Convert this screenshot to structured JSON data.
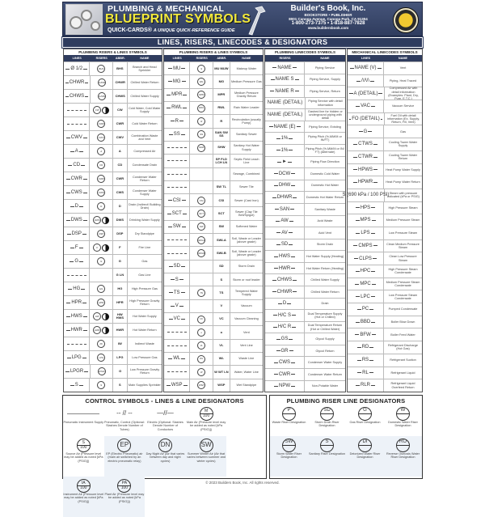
{
  "header": {
    "title_line1": "PLUMBING & MECHANICAL",
    "title_line2": "BLUEPRINT SYMBOLS",
    "brand": "QUICK-CARDS®",
    "tagline": "A UNIQUE QUICK-REFERENCE GUIDE",
    "publisher": "Builder's Book, Inc.",
    "publisher_sub": "BOOKSTORE • PUBLISHER",
    "address": "8001 Canoga Avenue, Canoga Park, CA 91304",
    "phone": "1-800-273-7375 • 1-818-887-7828",
    "website": "www.buildersbook.com",
    "logo_icon": "builders-book-seal",
    "accent": "#f3ea3c",
    "navy": "#2f3c5e"
  },
  "section_title": "LINES, RISERS, LINECODES & DESIGNATORS",
  "columns": [
    {
      "title": "PLUMBING RISERS & LINES SYMBOLS",
      "headers": [
        "LINES",
        "RISERS",
        "ABBR.",
        "NAME"
      ],
      "rows": [
        [
          "Ø 1/2",
          "BHS",
          "BHS",
          "Branch and Head Sprinkler"
        ],
        [
          "CHWR",
          "CHWR",
          "CHWR",
          "Chilled Water Return"
        ],
        [
          "CHWS",
          "CHWS",
          "CHWS",
          "Chilled Water Supply"
        ],
        [
          "",
          "CW",
          "CW",
          "Cold Water, Cold Water Supply",
          "half"
        ],
        [
          "",
          "CWR",
          "CWR",
          "Cold Water Return"
        ],
        [
          "CWV",
          "CWV",
          "CWV",
          "Combination Waste and Vent"
        ],
        [
          "A",
          "A",
          "A",
          "Compressed Air"
        ],
        [
          "CD",
          "CD",
          "CD",
          "Condensate Drain"
        ],
        [
          "CWR",
          "CWR",
          "CWR",
          "Condenser Water Return"
        ],
        [
          "CWS",
          "CWS",
          "CWS",
          "Condenser Water Supply"
        ],
        [
          "D",
          "D",
          "D",
          "Drain (Indirect/ Building Drain)"
        ],
        [
          "DWS",
          "DWS",
          "DWS",
          "Drinking Water Supply",
          "half"
        ],
        [
          "DSP",
          "DSP",
          "DSP",
          "Dry Standpipe"
        ],
        [
          "F",
          "F",
          "F",
          "Fire Line",
          "half"
        ],
        [
          "G",
          "G",
          "G",
          "Gas"
        ],
        [
          "",
          "",
          "G LN",
          "Gas Line"
        ],
        [
          "HG",
          "HG",
          "HG",
          "High Pressure Gas"
        ],
        [
          "HPR",
          "HPR",
          "HPR",
          "High Pressure Gravity Return"
        ],
        [
          "HWS",
          "HW",
          "HW HWS",
          "Hot Water Supply",
          "half"
        ],
        [
          "HWR",
          "HWR",
          "HWR",
          "Hot Water Return",
          "half"
        ],
        [
          "",
          "IW",
          "IW",
          "Indirect Waste"
        ],
        [
          "LPG",
          "LPG",
          "LPG",
          "Low Pressure Gas"
        ],
        [
          "LPGR",
          "LPGR",
          "G",
          "Low Pressure Gravity Return"
        ],
        [
          "S",
          "S",
          "S",
          "Main Supplies Sprinkler"
        ]
      ]
    },
    {
      "title": "PLUMBING RISERS & LINES SYMBOLS",
      "headers": [
        "LINES",
        "RISERS",
        "ABBR.",
        "NAME"
      ],
      "rows": [
        [
          "MU",
          "S",
          "MU MUW",
          "Makeup Water"
        ],
        [
          "MG",
          "MG",
          "MG",
          "Medium Pressure Gas"
        ],
        [
          "MPR",
          "MPR",
          "MPR",
          "Medium Pressure Gravity Return"
        ],
        [
          "RWL",
          "RWL",
          "RWL",
          "Rain Water Leader"
        ],
        [
          "R",
          "R",
          "R",
          "Recirculation (usually Pump)"
        ],
        [
          "SS",
          "SS",
          "SAN SW SS",
          "Sanitary Sewer"
        ],
        [
          "",
          "SHW",
          "SHW",
          "Sanitary Hot Water Supply"
        ],
        [
          "",
          "",
          "SP FLD LCH LN",
          "Septic Field Leach Line"
        ],
        [
          "",
          "",
          "",
          "Sewage, Combined"
        ],
        [
          "",
          "",
          "SW TL",
          "Sewer Tile"
        ],
        [
          "CSI",
          "CSI",
          "CSI",
          "Sewer (Cast Iron)"
        ],
        [
          "SCT",
          "SCT",
          "SCT",
          "Sewer (Clay Tile Bell/Spigot)"
        ],
        [
          "SW",
          "SW",
          "SW",
          "Softened Water"
        ],
        [
          "",
          "SWLA",
          "SWLA",
          "Soil, Waste or Leader (above grade)"
        ],
        [
          "",
          "SWLB",
          "SWLB",
          "Soil, Waste or Leader (above grade)"
        ],
        [
          "SD",
          "",
          "SD",
          "Storm Drain"
        ],
        [
          "S",
          "",
          "S",
          "Storm or roof leader"
        ],
        [
          "TS",
          "TS",
          "TS",
          "Tempered Water Supply"
        ],
        [
          "V",
          "",
          "V",
          "Vacuum"
        ],
        [
          "VC",
          "VC",
          "VC",
          "Vacuum Cleaning"
        ],
        [
          "",
          "o",
          "o",
          "Vent"
        ],
        [
          "",
          "VL",
          "VL",
          "Vent Line"
        ],
        [
          "WL",
          "WL",
          "WL",
          "Waste Line"
        ],
        [
          "",
          "W",
          "W WT LN",
          "Water, Water Line"
        ],
        [
          "WSP",
          "WSP",
          "WSP",
          "Wet Standpipe"
        ]
      ]
    },
    {
      "title": "PLUMBING LINECODES SYMBOLS",
      "headers": [
        "RISERS",
        "NAME"
      ],
      "rows": [
        [
          "NAME",
          "Piping Service"
        ],
        [
          "NAME S",
          "Piping Service, Supply"
        ],
        [
          "NAME R",
          "Piping Service, Return"
        ],
        [
          "NAME (DETAIL)",
          "Piping Service with detail information"
        ],
        [
          "NAME (DETAIL)",
          "Dashed line for hidden or underground piping with detail"
        ],
        [
          "NAME (E)",
          "Piping Service, Existing"
        ],
        [
          "1%",
          "Piping Pitch (%,MM/M or IN/FT)"
        ],
        [
          "1%",
          "Piping Pitch (%,MM/M or IN/ FT) (Alternate)"
        ],
        [
          "►",
          "Piping Flow Direction"
        ],
        [
          "DCW",
          "Domestic Cold Water"
        ],
        [
          "DHW",
          "Domestic Hot Water"
        ],
        [
          "DHWR",
          "Domestic Hot Water Return"
        ],
        [
          "SAN",
          "Sanitary Waste"
        ],
        [
          "AW",
          "Acid Waste"
        ],
        [
          "AV",
          "Acid Vent"
        ],
        [
          "SD",
          "Storm Drain"
        ],
        [
          "HWS",
          "Hot Water Supply (Heating)"
        ],
        [
          "HWR",
          "Hot Water Return (Heating)"
        ],
        [
          "CHWS",
          "Chilled Water Supply"
        ],
        [
          "CHWR",
          "Chilled Water Return"
        ],
        [
          "D",
          "Drain"
        ],
        [
          "H/C S",
          "Dual Temperature Supply (Hot or Chilled)"
        ],
        [
          "H/C R",
          "Dual Temperature Return (Hot or Chilled Water)"
        ],
        [
          "GS",
          "Glycol Supply"
        ],
        [
          "GR",
          "Glycol Return"
        ],
        [
          "CWS",
          "Condenser Water Supply"
        ],
        [
          "CWR",
          "Condenser Water Return"
        ],
        [
          "NPW",
          "Non-Potable Water"
        ]
      ]
    },
    {
      "title": "MECHANICAL LINECODES SYMBOLS",
      "headers": [
        "LINES",
        "NAME"
      ],
      "rows": [
        [
          "NAME (V)",
          "Vent"
        ],
        [
          "/\\/\\/\\",
          "Piping, Heat Traced"
        ],
        [
          "A (DETAIL)",
          "Compressed Air with detail information (Examples: Plant, Dry, Pure, E.T.C.)"
        ],
        [
          "VAC",
          "Vacuum Service"
        ],
        [
          "FO (DETAIL)",
          "Fuel Oil with detail information (Ex. Supply, Return, Fill, Vent)"
        ],
        [
          "G",
          "Gas"
        ],
        [
          "CTWS",
          "Cooling Tower Water Supply"
        ],
        [
          "CTWR",
          "Cooling Tower Water Return"
        ],
        [
          "HPWS",
          "Heat Pump Water Supply"
        ],
        [
          "HPWR",
          "Heat Pump Water Return"
        ],
        [
          "S (690 kPa / 100 PSI)",
          "Steam with pressure indicated (kPa or PSIG)"
        ],
        [
          "HPS",
          "High Pressure Steam"
        ],
        [
          "MPS",
          "Medium Pressure Steam"
        ],
        [
          "LPS",
          "Low Pressure Steam"
        ],
        [
          "CMPS",
          "Clean Medium Pressure Steam"
        ],
        [
          "CLPS",
          "Clean Low Pressure Steam"
        ],
        [
          "HPC",
          "High Pressure Steam Condensate"
        ],
        [
          "MPC",
          "Medium Pressure Steam Condensate"
        ],
        [
          "LPC",
          "Low Pressure Steam Condensate"
        ],
        [
          "PC",
          "Pumped Condensate"
        ],
        [
          "BBD",
          "Boiler Blow Down"
        ],
        [
          "BFW",
          "Boiler Feed Water"
        ],
        [
          "RD",
          "Refrigerant Discharge (Hot Gas)"
        ],
        [
          "RS",
          "Refrigerant Suction"
        ],
        [
          "RL",
          "Refrigerant Liquid"
        ],
        [
          "RLR",
          "Refrigerant Liquid Overfeed Return"
        ]
      ]
    }
  ],
  "control": {
    "title": "CONTROL SYMBOLS - LINES & LINE DESIGNATORS",
    "items": [
      {
        "sym": "",
        "label": "Pneumatic Instrument Supply",
        "kind": "line"
      },
      {
        "sym": "-- // --",
        "label": "Pneumatic, Control (Optional: Slashes Denote Number of Tubes)",
        "kind": "text"
      },
      {
        "sym": "—//—",
        "label": "Electric (Optional: Slashes Denote Number of Conductors",
        "kind": "text"
      },
      {
        "sym": "M",
        "sub": "100",
        "label": "Main Air (Pressure level may be added as noted [kPa (PSIG)])",
        "kind": "split"
      },
      {
        "sym": "S",
        "sub": "100",
        "label": "Source Air (Pressure level may be added as noted [kPa (PSIG)])",
        "kind": "split"
      },
      {
        "sym": "EP",
        "label": "EP (Electric Pneumatic) air (main air switched by an electric pneumatic relay)",
        "kind": "big"
      },
      {
        "sym": "DN",
        "label": "Day Night Air (Air that varies between day and night cycles)",
        "kind": "big"
      },
      {
        "sym": "SW",
        "label": "Summer Winter Air (Air that varies between summer and winter cycles)",
        "kind": "big"
      },
      {
        "sym": "IA",
        "sub": "100",
        "label": "Instrument Air (Pressure level may be added as noted [kPa (PSIG)])",
        "kind": "split"
      },
      {
        "sym": "PA",
        "sub": "100",
        "label": "Plant Air (Pressure level may be added as noted [kPa (PSIG)])",
        "kind": "split"
      }
    ]
  },
  "riser": {
    "title": "PLUMBING RISER LINE DESIGNATORS",
    "items": [
      {
        "sym": "P",
        "label": "Waste Riser Designation"
      },
      {
        "sym": "SD",
        "label": "Storm Drain Riser Designation"
      },
      {
        "sym": "G",
        "label": "Gas Riser Designation"
      },
      {
        "sym": "W",
        "label": "Domestic Water Riser Designation"
      },
      {
        "sym": "SW",
        "label": "Storm Water Riser Designation"
      },
      {
        "sym": "S",
        "label": "Sanitary Riser Designation"
      },
      {
        "sym": "DI",
        "label": "Deionized Water Riser Designation"
      },
      {
        "sym": "RO",
        "label": "Reverse Osmosis Water Riser Designation"
      }
    ]
  },
  "copyright": "© 2023 Builders Book, Inc. All rights reserved."
}
